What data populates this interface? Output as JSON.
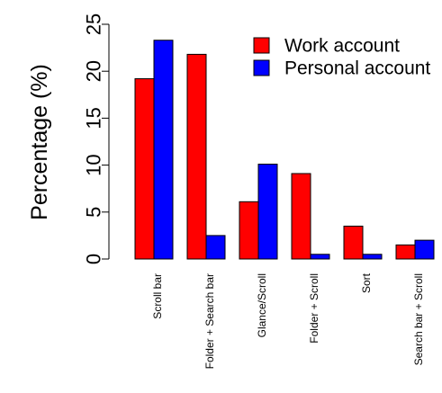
{
  "chart_data": {
    "type": "bar",
    "ylabel": "Percentage (%)",
    "xlabel": "",
    "ylim": [
      0,
      25
    ],
    "yticks": [
      0,
      5,
      10,
      15,
      20,
      25
    ],
    "grid": false,
    "legend_position": "top-right",
    "categories": [
      "Scroll bar",
      "Folder + Search bar",
      "Glance/Scroll",
      "Folder + Scroll",
      "Sort",
      "Search bar + Scroll"
    ],
    "series": [
      {
        "name": "Work account",
        "color": "#ff0000",
        "values": [
          19.2,
          21.8,
          6.1,
          9.1,
          3.5,
          1.5
        ]
      },
      {
        "name": "Personal account",
        "color": "#0000ff",
        "values": [
          23.3,
          2.5,
          10.1,
          0.5,
          0.5,
          2.0
        ]
      }
    ]
  }
}
